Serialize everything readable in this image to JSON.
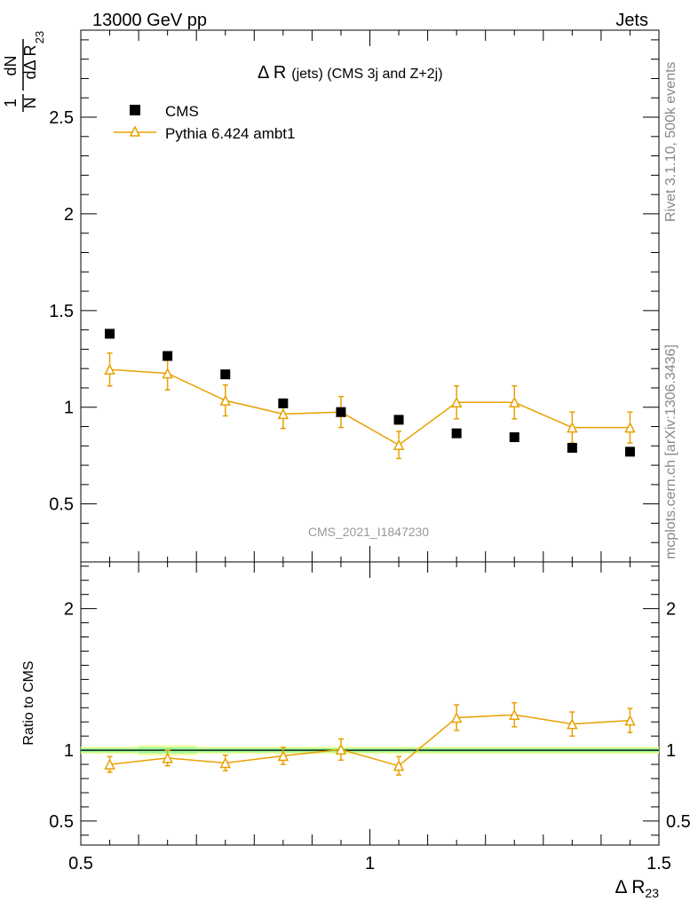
{
  "header": {
    "left": "13000 GeV pp",
    "right": "Jets"
  },
  "side": {
    "rivet": "Rivet 3.1.10,  500k events",
    "source": "mcplots.cern.ch [arXiv:1306.3436]"
  },
  "watermark": "CMS_2021_I1847230",
  "chart_data": [
    {
      "type": "scatter",
      "panel": "main",
      "title_main": "Δ R",
      "title_sub": "(jets) (CMS 3j and Z+2j)",
      "ylabel_num": "1",
      "ylabel_den": "N",
      "ylabel_dnum": "dN",
      "ylabel_dden": "dΔ R",
      "ylabel_sub": "23",
      "xlim": [
        0.5,
        1.5
      ],
      "ylim": [
        0.2,
        2.95
      ],
      "yticks": [
        0.5,
        1,
        1.5,
        2,
        2.5
      ],
      "ytick_labels": [
        "0.5",
        "1",
        "1.5",
        "2",
        "2.5"
      ],
      "series": [
        {
          "name": "CMS",
          "color": "#000000",
          "marker": "square",
          "x": [
            0.55,
            0.65,
            0.75,
            0.85,
            0.95,
            1.05,
            1.15,
            1.25,
            1.35,
            1.45
          ],
          "y": [
            1.38,
            1.265,
            1.17,
            1.02,
            0.975,
            0.935,
            0.865,
            0.845,
            0.79,
            0.77
          ]
        },
        {
          "name": "Pythia 6.424 ambt1",
          "color": "#e8a000",
          "marker": "open-triangle",
          "line": true,
          "x": [
            0.55,
            0.65,
            0.75,
            0.85,
            0.95,
            1.05,
            1.15,
            1.25,
            1.35,
            1.45
          ],
          "y": [
            1.195,
            1.175,
            1.035,
            0.965,
            0.975,
            0.805,
            1.025,
            1.025,
            0.895,
            0.895
          ],
          "err": [
            0.085,
            0.085,
            0.08,
            0.075,
            0.08,
            0.07,
            0.085,
            0.085,
            0.08,
            0.08
          ]
        }
      ]
    },
    {
      "type": "scatter",
      "panel": "ratio",
      "ylabel": "Ratio to CMS",
      "xlabel_main": "Δ R",
      "xlabel_sub": "23",
      "xlim": [
        0.5,
        1.5
      ],
      "ylim": [
        0.33,
        2.33
      ],
      "xticks": [
        0.5,
        1,
        1.5
      ],
      "xtick_labels": [
        "0.5",
        "1",
        "1.5"
      ],
      "yticks": [
        0.5,
        1,
        2
      ],
      "ytick_labels": [
        "0.5",
        "1",
        "2"
      ],
      "reference_line": 1,
      "band": [
        {
          "x0": 0.5,
          "x1": 0.6,
          "low": 0.975,
          "high": 1.025
        },
        {
          "x0": 0.6,
          "x1": 0.7,
          "low": 0.965,
          "high": 1.035
        },
        {
          "x0": 0.7,
          "x1": 1.0,
          "low": 0.975,
          "high": 1.025
        },
        {
          "x0": 1.0,
          "x1": 1.5,
          "low": 0.975,
          "high": 1.025
        }
      ],
      "series": [
        {
          "name": "Pythia 6.424 ambt1",
          "color": "#e8a000",
          "x": [
            0.55,
            0.65,
            0.75,
            0.85,
            0.95,
            1.05,
            1.15,
            1.25,
            1.35,
            1.45
          ],
          "y": [
            0.9,
            0.945,
            0.91,
            0.96,
            1.005,
            0.89,
            1.23,
            1.25,
            1.185,
            1.21
          ],
          "err": [
            0.055,
            0.055,
            0.055,
            0.06,
            0.075,
            0.065,
            0.09,
            0.085,
            0.085,
            0.085
          ]
        }
      ]
    }
  ]
}
